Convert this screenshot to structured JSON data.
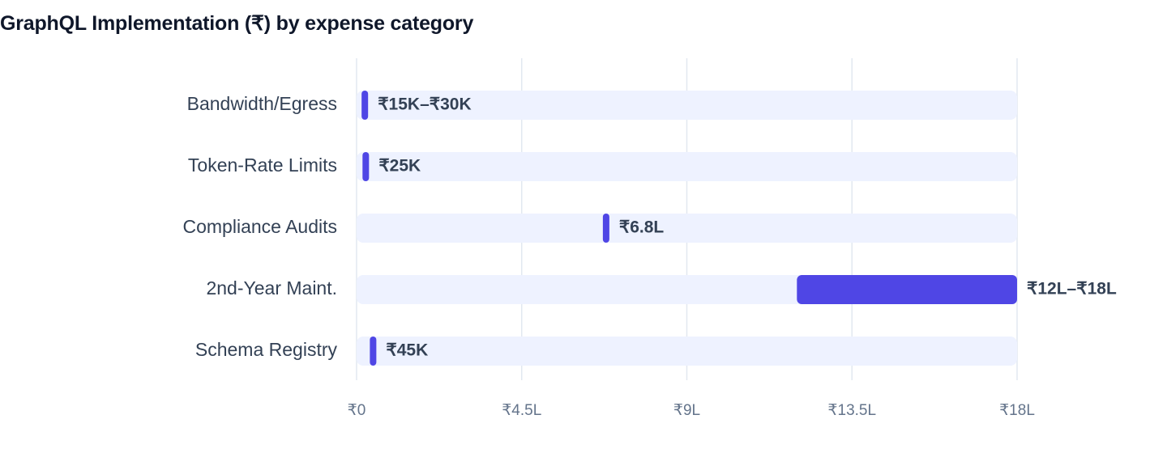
{
  "title": "GraphQL Implementation (₹) by expense category",
  "colors": {
    "bar": "#4f46e5",
    "track": "#eef2ff",
    "grid": "#e2e8f0",
    "category_text": "#334155",
    "tick_text": "#64748b",
    "title_text": "#0f172a"
  },
  "chart_data": {
    "type": "bar",
    "orientation": "horizontal",
    "title": "GraphQL Implementation (₹) by expense category",
    "xlabel": "",
    "ylabel": "",
    "xlim": [
      0,
      1800000
    ],
    "grid": true,
    "legend": "none",
    "ticks": [
      {
        "value": 0,
        "label": "₹0"
      },
      {
        "value": 450000,
        "label": "₹4.5L"
      },
      {
        "value": 900000,
        "label": "₹9L"
      },
      {
        "value": 1350000,
        "label": "₹13.5L"
      },
      {
        "value": 1800000,
        "label": "₹18L"
      }
    ],
    "categories": [
      "Bandwidth/Egress",
      "Token-Rate Limits",
      "Compliance Audits",
      "2nd-Year Maint.",
      "Schema Registry"
    ],
    "ranges": [
      {
        "low": 15000,
        "high": 30000,
        "label": "₹15K–₹30K"
      },
      {
        "low": 25000,
        "high": 25000,
        "label": "₹25K"
      },
      {
        "low": 680000,
        "high": 680000,
        "label": "₹6.8L"
      },
      {
        "low": 1200000,
        "high": 1800000,
        "label": "₹12L–₹18L"
      },
      {
        "low": 45000,
        "high": 45000,
        "label": "₹45K"
      }
    ]
  }
}
